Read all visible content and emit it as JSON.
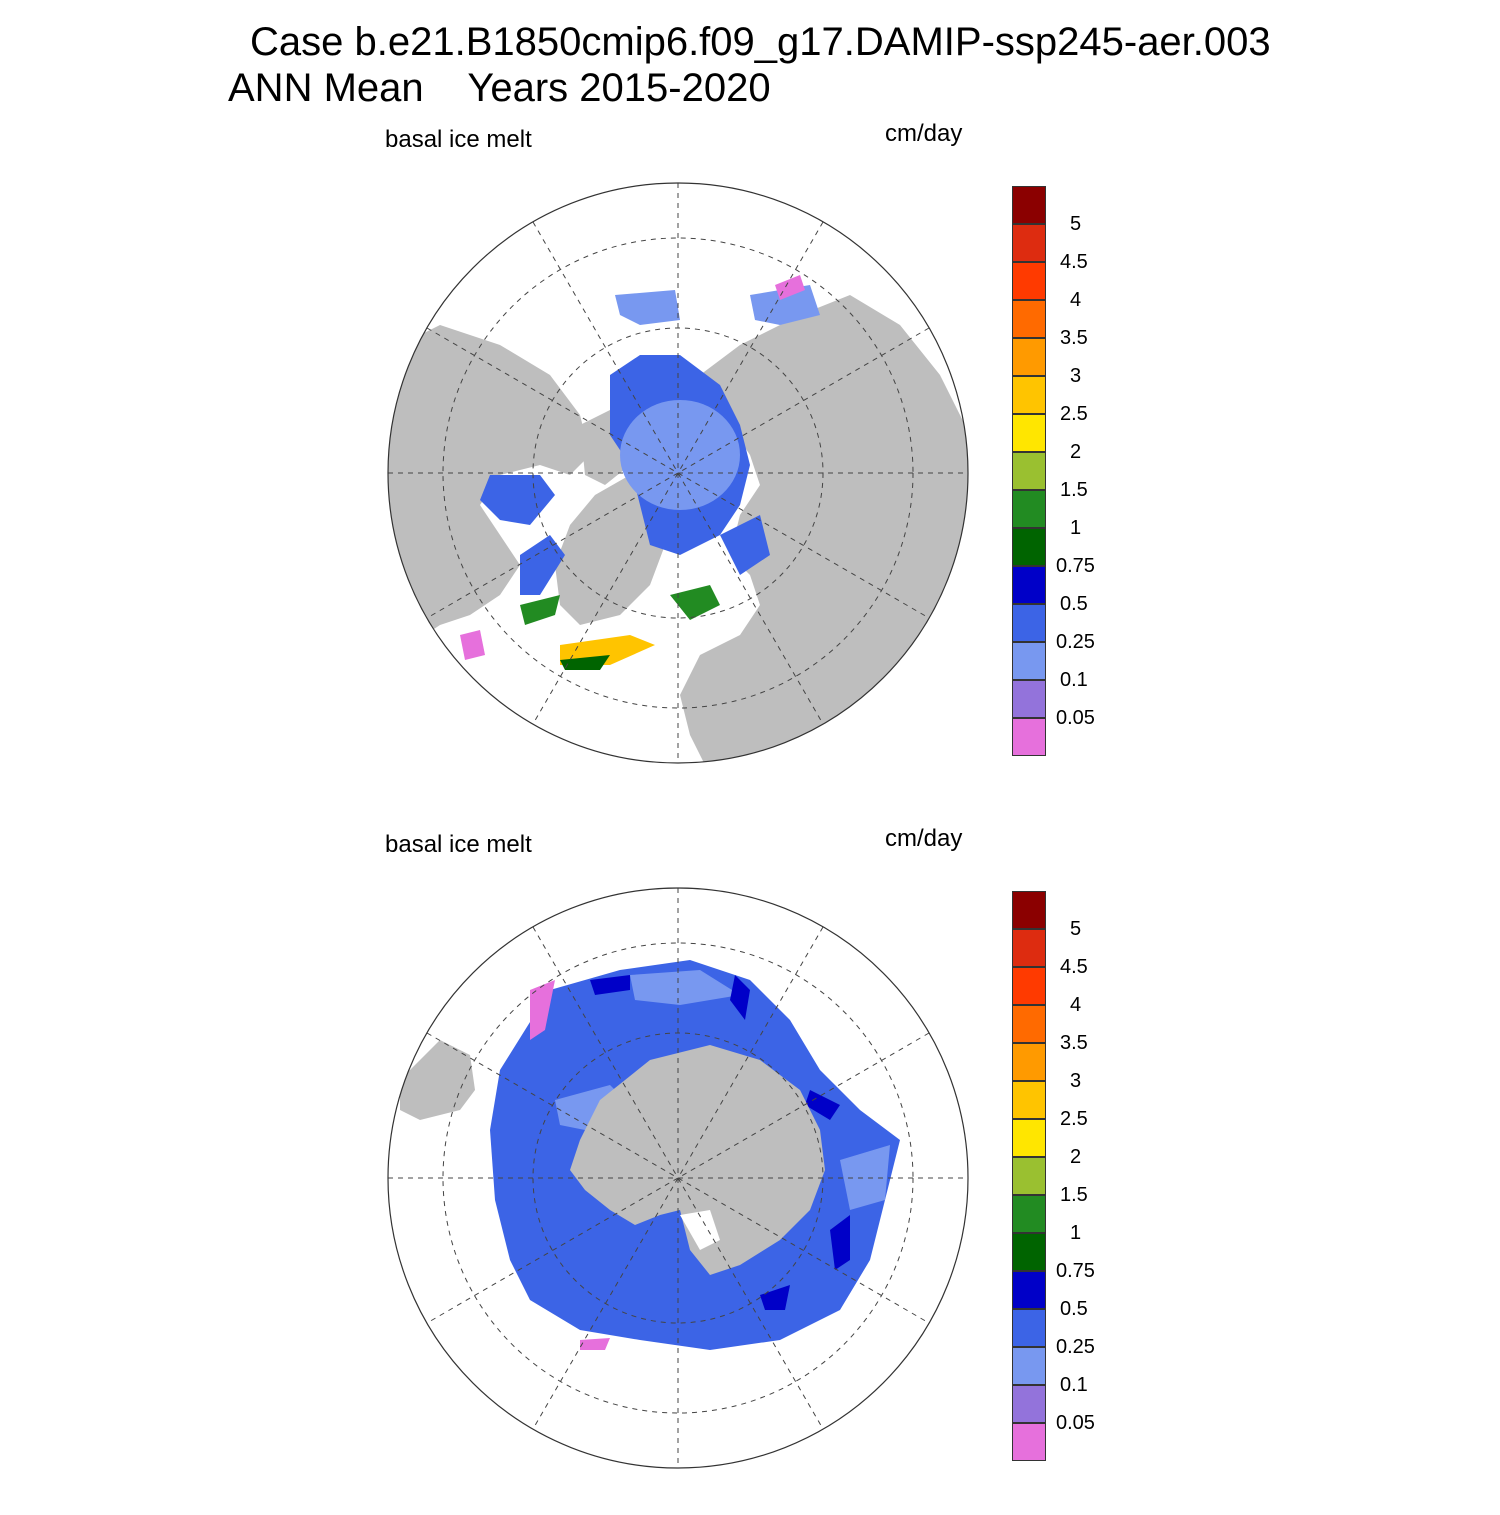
{
  "title": {
    "line1": "Case b.e21.B1850cmip6.f09_g17.DAMIP-ssp245-aer.003",
    "line2_left": "ANN Mean",
    "line2_right": "Years 2015-2020"
  },
  "panels": [
    {
      "id": "north",
      "variable": "basal ice melt",
      "units": "cm/day",
      "hemisphere": "Northern"
    },
    {
      "id": "south",
      "variable": "basal ice melt",
      "units": "cm/day",
      "hemisphere": "Southern"
    }
  ],
  "colorbar": {
    "labels": [
      "5",
      "4.5",
      "4",
      "3.5",
      "3",
      "2.5",
      "2",
      "1.5",
      "1",
      "0.75",
      "0.5",
      "0.25",
      "0.1",
      "0.05"
    ],
    "colors": [
      "#8b0000",
      "#dd2c10",
      "#ff3a00",
      "#ff6a00",
      "#ff9a00",
      "#ffc400",
      "#ffe600",
      "#9ac030",
      "#228b22",
      "#006400",
      "#0000c8",
      "#3c64e6",
      "#7898f0",
      "#9373db",
      "#e670dc"
    ]
  },
  "colors": {
    "land": "#bebebe",
    "ocean": "#ffffff",
    "grid": "#444444"
  }
}
